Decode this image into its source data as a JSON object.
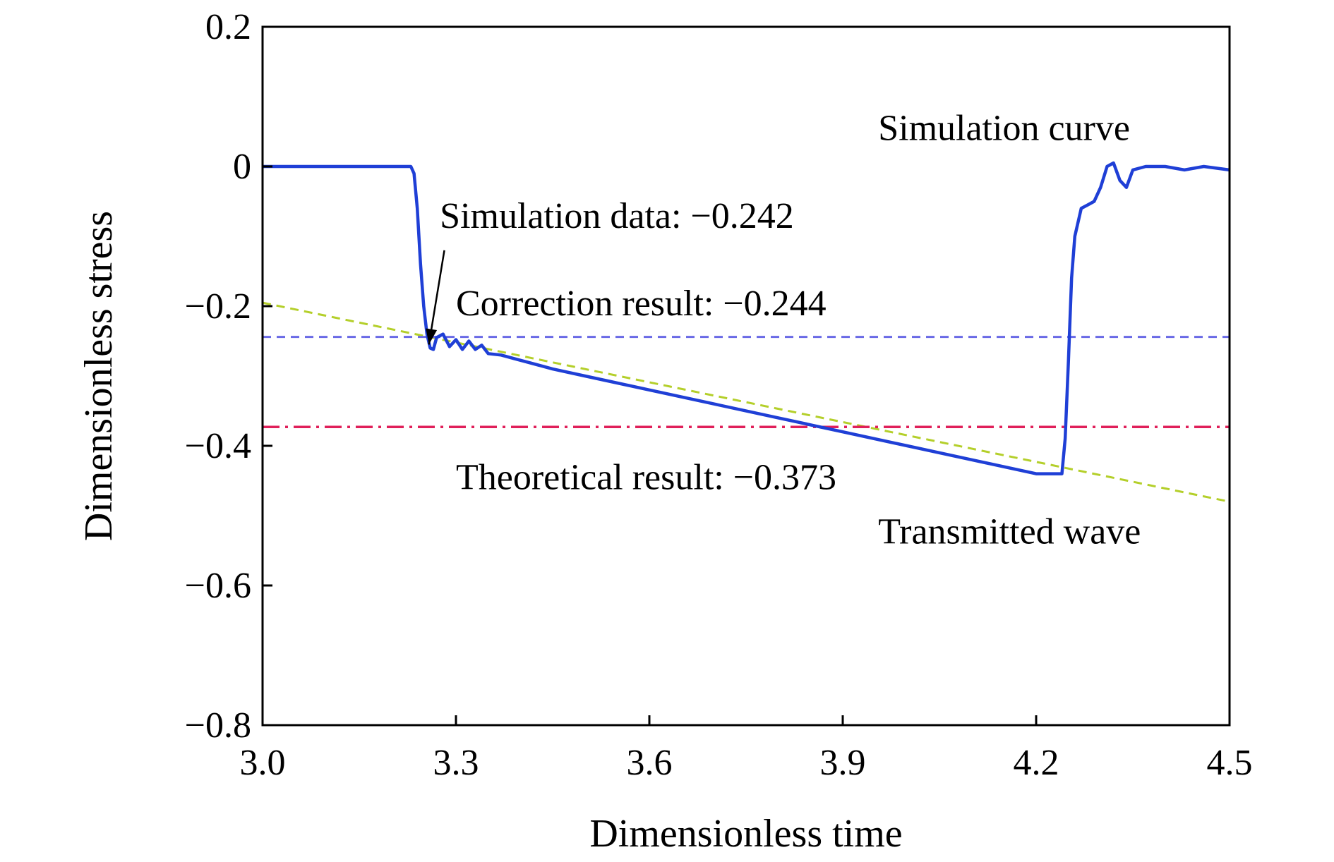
{
  "chart_data": {
    "type": "line",
    "xlabel": "Dimensionless time",
    "ylabel": "Dimensionless stress",
    "xlim": [
      3.0,
      4.5
    ],
    "ylim": [
      -0.8,
      0.2
    ],
    "xticks": [
      3.0,
      3.3,
      3.6,
      3.9,
      4.2,
      4.5
    ],
    "xtick_labels": [
      "3.0",
      "3.3",
      "3.6",
      "3.9",
      "4.2",
      "4.5"
    ],
    "yticks": [
      0.2,
      0,
      -0.2,
      -0.4,
      -0.6,
      -0.8
    ],
    "ytick_labels": [
      "0.2",
      "0",
      "−0.2",
      "−0.4",
      "−0.6",
      "−0.8"
    ],
    "grid": false,
    "series": [
      {
        "name": "Simulation curve",
        "color": "#1f3fd6",
        "style": "solid",
        "x": [
          3.0,
          3.1,
          3.2,
          3.23,
          3.235,
          3.24,
          3.245,
          3.25,
          3.255,
          3.26,
          3.265,
          3.27,
          3.28,
          3.29,
          3.3,
          3.31,
          3.32,
          3.33,
          3.34,
          3.35,
          3.37,
          3.39,
          3.41,
          3.43,
          3.45,
          3.5,
          3.6,
          3.7,
          3.8,
          3.9,
          4.0,
          4.1,
          4.2,
          4.24,
          4.245,
          4.25,
          4.255,
          4.26,
          4.27,
          4.28,
          4.29,
          4.3,
          4.31,
          4.32,
          4.33,
          4.34,
          4.35,
          4.37,
          4.4,
          4.43,
          4.46,
          4.5
        ],
        "y": [
          0.0,
          0.0,
          0.0,
          0.0,
          -0.01,
          -0.06,
          -0.14,
          -0.2,
          -0.24,
          -0.26,
          -0.262,
          -0.245,
          -0.24,
          -0.258,
          -0.248,
          -0.262,
          -0.25,
          -0.262,
          -0.256,
          -0.268,
          -0.27,
          -0.275,
          -0.28,
          -0.285,
          -0.29,
          -0.3,
          -0.32,
          -0.34,
          -0.36,
          -0.38,
          -0.4,
          -0.42,
          -0.44,
          -0.44,
          -0.39,
          -0.28,
          -0.16,
          -0.1,
          -0.06,
          -0.055,
          -0.05,
          -0.03,
          0.0,
          0.005,
          -0.02,
          -0.03,
          -0.005,
          0.0,
          0.0,
          -0.005,
          0.0,
          -0.005
        ]
      },
      {
        "name": "Transmitted wave",
        "color": "#b4cf2a",
        "style": "dashed",
        "x": [
          3.0,
          4.5
        ],
        "y": [
          -0.195,
          -0.48
        ]
      },
      {
        "name": "Correction result: −0.244",
        "color": "#6a6ae6",
        "style": "dashed",
        "x": [
          3.0,
          4.5
        ],
        "y": [
          -0.244,
          -0.244
        ]
      },
      {
        "name": "Theoretical result: −0.373",
        "color": "#e0205a",
        "style": "dashdot",
        "x": [
          3.0,
          4.5
        ],
        "y": [
          -0.373,
          -0.373
        ]
      }
    ],
    "annotations": [
      {
        "text": "Simulation curve",
        "x": 3.955,
        "y": 0.038
      },
      {
        "text": "Simulation data: −0.242",
        "x": 3.275,
        "y": -0.088
      },
      {
        "text": "Correction result: −0.244",
        "x": 3.3,
        "y": -0.213
      },
      {
        "text": "Theoretical result: −0.373",
        "x": 3.3,
        "y": -0.462
      },
      {
        "text": "Transmitted wave",
        "x": 3.955,
        "y": -0.54
      }
    ],
    "arrow": {
      "from": [
        3.282,
        -0.12
      ],
      "to": [
        3.258,
        -0.255
      ]
    }
  }
}
